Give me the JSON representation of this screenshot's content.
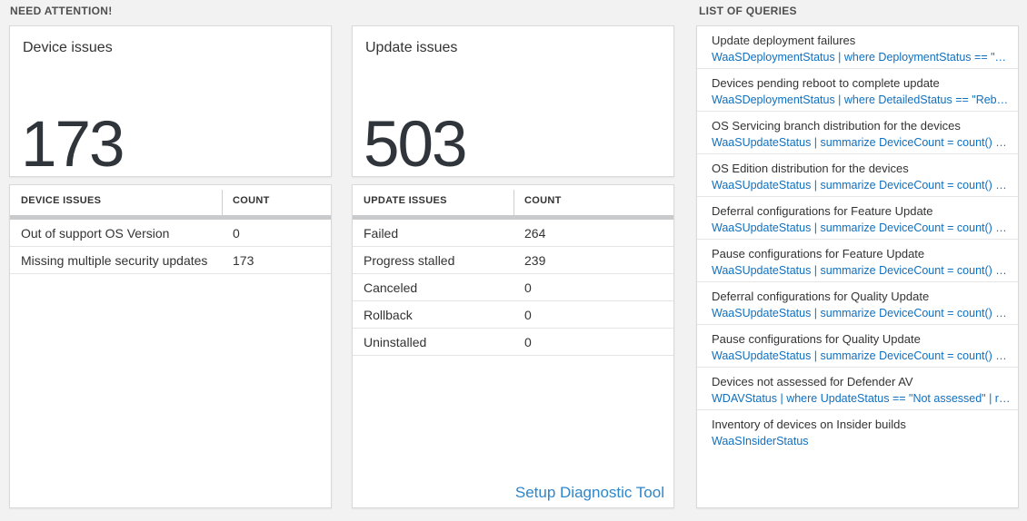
{
  "colors": {
    "page_bg": "#f2f2f2",
    "card_bg": "#ffffff",
    "accent_blue": "#1070c0",
    "link_blue": "#2e86cb",
    "big_number": "#2f353a",
    "header_bar_gray": "#c8cacc"
  },
  "need_attention": {
    "header": "NEED ATTENTION!",
    "cards": [
      {
        "title": "Device issues",
        "big_number": "173",
        "table": {
          "columns": [
            "DEVICE ISSUES",
            "COUNT"
          ],
          "rows": [
            [
              "Out of support OS Version",
              "0"
            ],
            [
              "Missing multiple security updates",
              "173"
            ]
          ]
        }
      },
      {
        "title": "Update issues",
        "big_number": "503",
        "table": {
          "columns": [
            "UPDATE ISSUES",
            "COUNT"
          ],
          "rows": [
            [
              "Failed",
              "264"
            ],
            [
              "Progress stalled",
              "239"
            ],
            [
              "Canceled",
              "0"
            ],
            [
              "Rollback",
              "0"
            ],
            [
              "Uninstalled",
              "0"
            ]
          ]
        },
        "footer_link": "Setup Diagnostic Tool"
      }
    ]
  },
  "queries": {
    "header": "LIST OF QUERIES",
    "items": [
      {
        "title": "Update deployment failures",
        "query": "WaaSDeploymentStatus | where DeploymentStatus == \"Failed\" |..."
      },
      {
        "title": "Devices pending reboot to complete update",
        "query": "WaaSDeploymentStatus | where DetailedStatus == \"Reboot pend..."
      },
      {
        "title": "OS Servicing branch distribution for the devices",
        "query": "WaaSUpdateStatus | summarize DeviceCount = count() by OSSer..."
      },
      {
        "title": "OS Edition distribution for the devices",
        "query": "WaaSUpdateStatus | summarize DeviceCount = count() by OSEdit..."
      },
      {
        "title": "Deferral configurations for Feature Update",
        "query": "WaaSUpdateStatus | summarize DeviceCount = count() by Featur..."
      },
      {
        "title": "Pause configurations for Feature Update",
        "query": "WaaSUpdateStatus | summarize DeviceCount = count() by Featur..."
      },
      {
        "title": "Deferral configurations for Quality Update",
        "query": "WaaSUpdateStatus | summarize DeviceCount = count() by Qualit..."
      },
      {
        "title": "Pause configurations for Quality Update",
        "query": "WaaSUpdateStatus | summarize DeviceCount = count() by Qualit..."
      },
      {
        "title": "Devices not assessed for Defender AV",
        "query": "WDAVStatus | where UpdateStatus == \"Not assessed\" | render ta..."
      },
      {
        "title": "Inventory of devices on Insider builds",
        "query": "WaaSInsiderStatus"
      }
    ]
  }
}
